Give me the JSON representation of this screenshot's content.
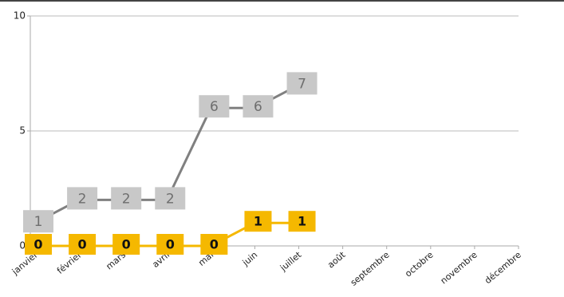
{
  "chart_data": {
    "type": "line",
    "categories": [
      "janvier",
      "février",
      "mars",
      "avril",
      "mai",
      "juin",
      "juillet",
      "août",
      "septembre",
      "octobre",
      "novembre",
      "décembre"
    ],
    "series": [
      {
        "color": "#808080",
        "label_bg": "#c8c8c8",
        "label_color": "#6e6e6e",
        "values": [
          1,
          2,
          2,
          2,
          6,
          6,
          7,
          null,
          null,
          null,
          null,
          null
        ]
      },
      {
        "color": "#f5b800",
        "label_bg": "#f5b800",
        "label_color": "#111111",
        "values": [
          0,
          0,
          0,
          0,
          0,
          1,
          1,
          null,
          null,
          null,
          null,
          null
        ]
      }
    ],
    "ylim": [
      0,
      10
    ],
    "yticks": [
      0,
      5,
      10
    ],
    "grid": true
  }
}
